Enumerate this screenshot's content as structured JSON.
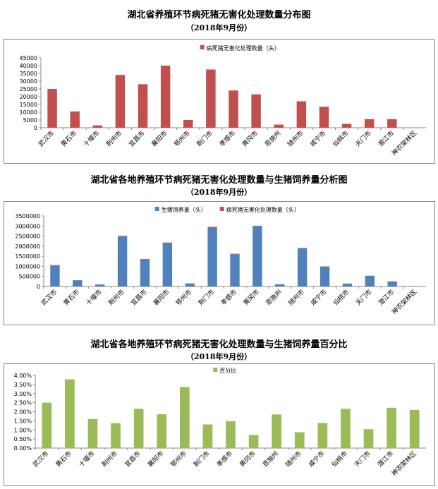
{
  "chart_data": [
    {
      "type": "bar",
      "title": "湖北省养殖环节病死猪无害化处理数量分布图",
      "subtitle": "（2018年9月份）",
      "categories": [
        "武汉市",
        "黄石市",
        "十堰市",
        "荆州市",
        "宜昌市",
        "襄阳市",
        "鄂州市",
        "荆门市",
        "孝感市",
        "黄冈市",
        "恩施州",
        "随州市",
        "咸宁市",
        "仙桃市",
        "天门市",
        "潜江市",
        "神农架林区"
      ],
      "series": [
        {
          "name": "病死猪无害化处理数量（头）",
          "color": "#c0504d",
          "values": [
            25000,
            10500,
            1500,
            34000,
            28000,
            40000,
            5000,
            37500,
            24000,
            21500,
            2000,
            17000,
            13500,
            2500,
            5500,
            5500,
            0
          ]
        }
      ],
      "ylim": [
        0,
        45000
      ],
      "yticks": [
        "0",
        "5000",
        "10000",
        "15000",
        "20000",
        "25000",
        "30000",
        "35000",
        "40000",
        "45000"
      ],
      "legend_position": "top-center",
      "grid": false
    },
    {
      "type": "bar",
      "stacked": true,
      "title": "湖北省各地养殖环节病死猪无害化处理数量与生猪饲养量分析图",
      "subtitle": "（2018年9月份）",
      "categories": [
        "武汉市",
        "黄石市",
        "十堰市",
        "荆州市",
        "宜昌市",
        "襄阳市",
        "鄂州市",
        "荆门市",
        "孝感市",
        "黄冈市",
        "恩施州",
        "随州市",
        "咸宁市",
        "仙桃市",
        "天门市",
        "潜江市",
        "神农架林区"
      ],
      "series": [
        {
          "name": "生猪饲养量（头）",
          "color": "#4f81bd",
          "values": [
            1040000,
            300000,
            100000,
            2480000,
            1340000,
            2140000,
            150000,
            2920000,
            1600000,
            2990000,
            110000,
            1890000,
            980000,
            140000,
            530000,
            250000,
            20000
          ]
        },
        {
          "name": "病死猪无害化处理数量（头）",
          "color": "#c0504d",
          "values": [
            25000,
            10500,
            1500,
            34000,
            28000,
            40000,
            5000,
            37500,
            24000,
            21500,
            2000,
            17000,
            13500,
            2500,
            5500,
            5500,
            0
          ]
        }
      ],
      "ylim": [
        0,
        3500000
      ],
      "yticks": [
        "0",
        "500000",
        "1000000",
        "1500000",
        "2000000",
        "2500000",
        "3000000",
        "3500000"
      ],
      "legend_position": "top-center",
      "grid": false
    },
    {
      "type": "bar",
      "title": "湖北省各地养殖环节病死猪无害化处理数量与生猪饲养量百分比",
      "subtitle": "（2018年9月份）",
      "categories": [
        "武汉市",
        "黄石市",
        "十堰市",
        "荆州市",
        "宜昌市",
        "襄阳市",
        "鄂州市",
        "荆门市",
        "孝感市",
        "黄冈市",
        "恩施州",
        "随州市",
        "咸宁市",
        "仙桃市",
        "天门市",
        "潜江市",
        "神农架林区"
      ],
      "series": [
        {
          "name": "百分比",
          "color": "#9bbb59",
          "values": [
            2.5,
            3.78,
            1.6,
            1.37,
            2.16,
            1.86,
            3.36,
            1.3,
            1.48,
            0.72,
            1.85,
            0.87,
            1.38,
            2.16,
            1.04,
            2.22,
            2.1
          ]
        }
      ],
      "ylim": [
        0,
        4.0
      ],
      "yticks": [
        "0.00%",
        "0.50%",
        "1.00%",
        "1.50%",
        "2.00%",
        "2.50%",
        "3.00%",
        "3.50%",
        "4.00%"
      ],
      "legend_position": "top-center",
      "grid": false
    }
  ]
}
